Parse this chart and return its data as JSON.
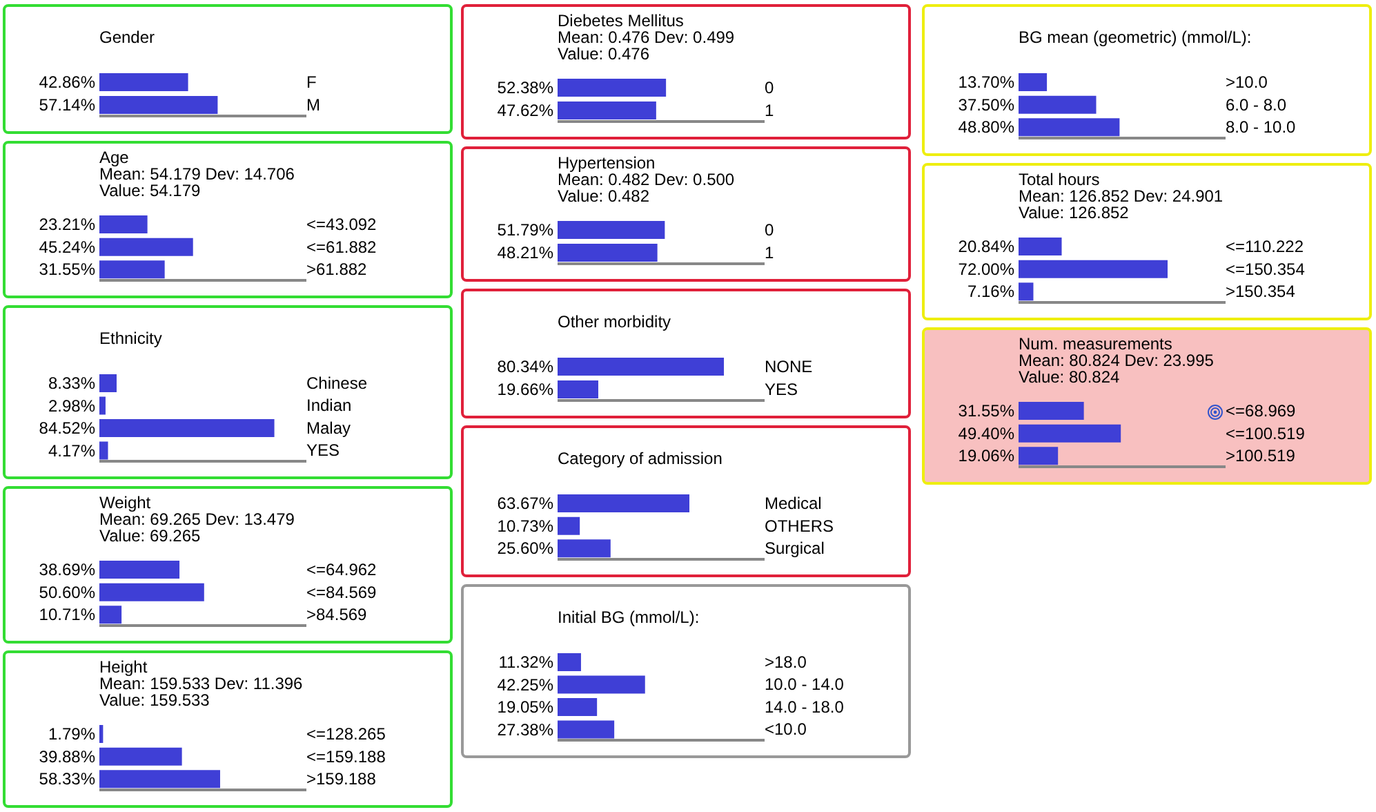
{
  "chart_data": [
    {
      "type": "bar",
      "orientation": "horizontal",
      "title": "Gender",
      "categories": [
        "F",
        "M"
      ],
      "values": [
        42.86,
        57.14
      ],
      "value_labels": [
        "42.86%",
        "57.14%"
      ],
      "color": "#3f3fd6",
      "xlim": [
        0,
        100
      ],
      "legend": false,
      "grid": false
    },
    {
      "type": "bar",
      "orientation": "horizontal",
      "title": "Age",
      "subtitle": "Mean: 54.179 Dev: 14.706",
      "annotations": [
        "Value: 54.179"
      ],
      "categories": [
        "<=43.092",
        "<=61.882",
        ">61.882"
      ],
      "values": [
        23.21,
        45.24,
        31.55
      ],
      "value_labels": [
        "23.21%",
        "45.24%",
        "31.55%"
      ],
      "color": "#3f3fd6",
      "xlim": [
        0,
        100
      ],
      "legend": false,
      "grid": false
    },
    {
      "type": "bar",
      "orientation": "horizontal",
      "title": "Ethnicity",
      "categories": [
        "Chinese",
        "Indian",
        "Malay",
        "YES"
      ],
      "values": [
        8.33,
        2.98,
        84.52,
        4.17
      ],
      "value_labels": [
        "8.33%",
        "2.98%",
        "84.52%",
        "4.17%"
      ],
      "color": "#3f3fd6",
      "xlim": [
        0,
        100
      ],
      "legend": false,
      "grid": false
    },
    {
      "type": "bar",
      "orientation": "horizontal",
      "title": "Weight",
      "subtitle": "Mean: 69.265 Dev: 13.479",
      "annotations": [
        "Value: 69.265"
      ],
      "categories": [
        "<=64.962",
        "<=84.569",
        ">84.569"
      ],
      "values": [
        38.69,
        50.6,
        10.71
      ],
      "value_labels": [
        "38.69%",
        "50.60%",
        "10.71%"
      ],
      "color": "#3f3fd6",
      "xlim": [
        0,
        100
      ],
      "legend": false,
      "grid": false
    },
    {
      "type": "bar",
      "orientation": "horizontal",
      "title": "Height",
      "subtitle": "Mean: 159.533 Dev: 11.396",
      "annotations": [
        "Value: 159.533"
      ],
      "categories": [
        "<=128.265",
        "<=159.188",
        ">159.188"
      ],
      "values": [
        1.79,
        39.88,
        58.33
      ],
      "value_labels": [
        "1.79%",
        "39.88%",
        "58.33%"
      ],
      "color": "#3f3fd6",
      "xlim": [
        0,
        100
      ],
      "legend": false,
      "grid": false
    },
    {
      "type": "bar",
      "orientation": "horizontal",
      "title": "Diebetes Mellitus",
      "subtitle": "Mean: 0.476 Dev: 0.499",
      "annotations": [
        "Value: 0.476"
      ],
      "categories": [
        "0",
        "1"
      ],
      "values": [
        52.38,
        47.62
      ],
      "value_labels": [
        "52.38%",
        "47.62%"
      ],
      "color": "#3f3fd6",
      "xlim": [
        0,
        100
      ],
      "legend": false,
      "grid": false
    },
    {
      "type": "bar",
      "orientation": "horizontal",
      "title": "Hypertension",
      "subtitle": "Mean: 0.482 Dev: 0.500",
      "annotations": [
        "Value: 0.482"
      ],
      "categories": [
        "0",
        "1"
      ],
      "values": [
        51.79,
        48.21
      ],
      "value_labels": [
        "51.79%",
        "48.21%"
      ],
      "color": "#3f3fd6",
      "xlim": [
        0,
        100
      ],
      "legend": false,
      "grid": false
    },
    {
      "type": "bar",
      "orientation": "horizontal",
      "title": "Other morbidity",
      "categories": [
        "NONE",
        "YES"
      ],
      "values": [
        80.34,
        19.66
      ],
      "value_labels": [
        "80.34%",
        "19.66%"
      ],
      "color": "#3f3fd6",
      "xlim": [
        0,
        100
      ],
      "legend": false,
      "grid": false
    },
    {
      "type": "bar",
      "orientation": "horizontal",
      "title": "Category of admission",
      "categories": [
        "Medical",
        "OTHERS",
        "Surgical"
      ],
      "values": [
        63.67,
        10.73,
        25.6
      ],
      "value_labels": [
        "63.67%",
        "10.73%",
        "25.60%"
      ],
      "color": "#3f3fd6",
      "xlim": [
        0,
        100
      ],
      "legend": false,
      "grid": false
    },
    {
      "type": "bar",
      "orientation": "horizontal",
      "title": "Initial BG (mmol/L):",
      "categories": [
        ">18.0",
        "10.0 - 14.0",
        "14.0 - 18.0",
        "<10.0"
      ],
      "values": [
        11.32,
        42.25,
        19.05,
        27.38
      ],
      "value_labels": [
        "11.32%",
        "42.25%",
        "19.05%",
        "27.38%"
      ],
      "color": "#3f3fd6",
      "xlim": [
        0,
        100
      ],
      "legend": false,
      "grid": false
    },
    {
      "type": "bar",
      "orientation": "horizontal",
      "title": "BG mean (geometric) (mmol/L):",
      "categories": [
        ">10.0",
        "6.0 - 8.0",
        "8.0 - 10.0"
      ],
      "values": [
        13.7,
        37.5,
        48.8
      ],
      "value_labels": [
        "13.70%",
        "37.50%",
        "48.80%"
      ],
      "color": "#3f3fd6",
      "xlim": [
        0,
        100
      ],
      "legend": false,
      "grid": false
    },
    {
      "type": "bar",
      "orientation": "horizontal",
      "title": "Total hours",
      "subtitle": "Mean: 126.852 Dev: 24.901",
      "annotations": [
        "Value: 126.852"
      ],
      "categories": [
        "<=110.222",
        "<=150.354",
        ">150.354"
      ],
      "values": [
        20.84,
        72.0,
        7.16
      ],
      "value_labels": [
        "20.84%",
        "72.00%",
        "7.16%"
      ],
      "color": "#3f3fd6",
      "xlim": [
        0,
        100
      ],
      "legend": false,
      "grid": false
    },
    {
      "type": "bar",
      "orientation": "horizontal",
      "title": "Num. measurements",
      "subtitle": "Mean: 80.824 Dev: 23.995",
      "annotations": [
        "Value: 80.824"
      ],
      "categories": [
        "<=68.969",
        "<=100.519",
        ">100.519"
      ],
      "values": [
        31.55,
        49.4,
        19.06
      ],
      "value_labels": [
        "31.55%",
        "49.40%",
        "19.06%"
      ],
      "color": "#3f3fd6",
      "xlim": [
        0,
        100
      ],
      "legend": false,
      "grid": false
    }
  ]
}
